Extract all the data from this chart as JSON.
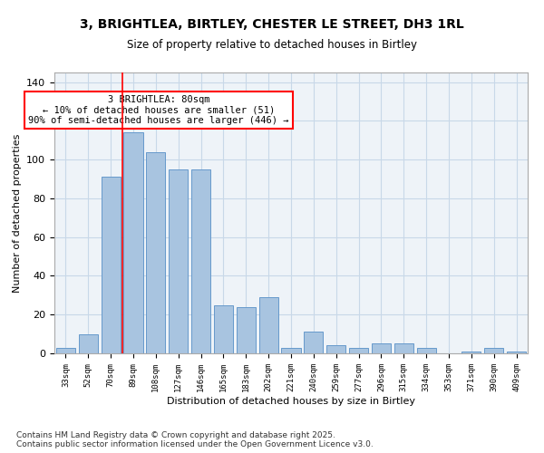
{
  "title_line1": "3, BRIGHTLEA, BIRTLEY, CHESTER LE STREET, DH3 1RL",
  "title_line2": "Size of property relative to detached houses in Birtley",
  "xlabel": "Distribution of detached houses by size in Birtley",
  "ylabel": "Number of detached properties",
  "categories": [
    "33sqm",
    "52sqm",
    "70sqm",
    "89sqm",
    "108sqm",
    "127sqm",
    "146sqm",
    "165sqm",
    "183sqm",
    "202sqm",
    "221sqm",
    "240sqm",
    "259sqm",
    "277sqm",
    "296sqm",
    "315sqm",
    "334sqm",
    "353sqm",
    "371sqm",
    "390sqm",
    "409sqm"
  ],
  "values": [
    3,
    10,
    91,
    114,
    104,
    95,
    95,
    25,
    24,
    29,
    3,
    11,
    4,
    3,
    5,
    5,
    3,
    0,
    1,
    3,
    1
  ],
  "bar_color": "#a8c4e0",
  "bar_edge_color": "#6699cc",
  "grid_color": "#c8d8e8",
  "bg_color": "#eef3f8",
  "red_line_x": 2.5,
  "annotation_text": "3 BRIGHTLEA: 80sqm\n← 10% of detached houses are smaller (51)\n90% of semi-detached houses are larger (446) →",
  "annotation_box_color": "white",
  "annotation_box_edge": "red",
  "footer_text": "Contains HM Land Registry data © Crown copyright and database right 2025.\nContains public sector information licensed under the Open Government Licence v3.0.",
  "ylim": [
    0,
    145
  ],
  "yticks": [
    0,
    20,
    40,
    60,
    80,
    100,
    120,
    140
  ]
}
